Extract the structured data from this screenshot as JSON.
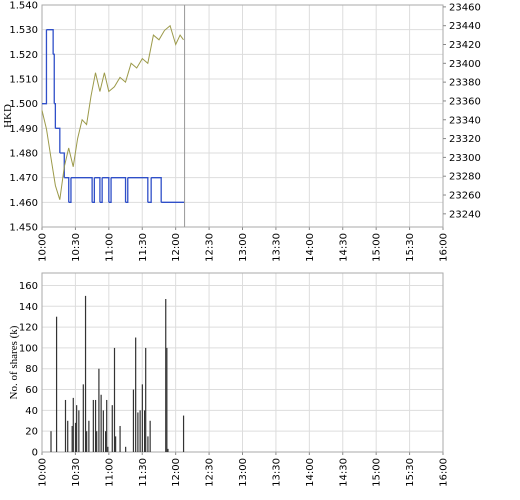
{
  "chart_data": [
    {
      "type": "line",
      "ylabel": "HKD",
      "xlim": [
        "10:00",
        "16:00"
      ],
      "xticks": [
        "10:00",
        "10:30",
        "11:00",
        "11:30",
        "12:00",
        "12:30",
        "13:00",
        "13:30",
        "14:00",
        "14:30",
        "15:00",
        "15:30",
        "16:00"
      ],
      "ylim": [
        1.45,
        1.54
      ],
      "yticks": [
        {
          "value": 1.54,
          "label": "1.540"
        },
        {
          "value": 1.53,
          "label": "1.530"
        },
        {
          "value": 1.52,
          "label": "1.520"
        },
        {
          "value": 1.51,
          "label": "1.510"
        },
        {
          "value": 1.5,
          "label": "1.500"
        },
        {
          "value": 1.49,
          "label": "1.490"
        },
        {
          "value": 1.48,
          "label": "1.480"
        },
        {
          "value": 1.47,
          "label": "1.470"
        },
        {
          "value": 1.46,
          "label": "1.460"
        },
        {
          "value": 1.45,
          "label": "1.450"
        }
      ],
      "y2lim": [
        23226,
        23462
      ],
      "y2ticks": [
        23460,
        23440,
        23420,
        23400,
        23380,
        23360,
        23340,
        23320,
        23300,
        23280,
        23260,
        23240
      ],
      "grid": true,
      "series": [
        {
          "color": "#2f4fc8",
          "axis": "y",
          "x": [
            "10:00",
            "10:04",
            "10:10",
            "10:11",
            "10:12",
            "10:16",
            "10:20",
            "10:24",
            "10:26",
            "10:45",
            "10:47",
            "10:52",
            "10:54",
            "11:00",
            "11:02",
            "11:15",
            "11:17",
            "11:35",
            "11:38",
            "11:47",
            "12:08"
          ],
          "values": [
            1.5,
            1.53,
            1.52,
            1.5,
            1.49,
            1.48,
            1.47,
            1.46,
            1.47,
            1.46,
            1.47,
            1.46,
            1.47,
            1.46,
            1.47,
            1.46,
            1.47,
            1.46,
            1.47,
            1.46,
            1.46
          ]
        },
        {
          "color": "#9c9a4a",
          "axis": "y2",
          "x": [
            "10:00",
            "10:04",
            "10:08",
            "10:12",
            "10:16",
            "10:20",
            "10:24",
            "10:28",
            "10:32",
            "10:36",
            "10:40",
            "10:44",
            "10:48",
            "10:52",
            "10:56",
            "11:00",
            "11:05",
            "11:10",
            "11:15",
            "11:20",
            "11:25",
            "11:30",
            "11:35",
            "11:40",
            "11:45",
            "11:50",
            "11:55",
            "12:00",
            "12:04",
            "12:07"
          ],
          "values": [
            23350,
            23330,
            23300,
            23270,
            23255,
            23290,
            23310,
            23290,
            23320,
            23340,
            23335,
            23365,
            23390,
            23370,
            23390,
            23370,
            23375,
            23385,
            23380,
            23400,
            23395,
            23405,
            23400,
            23430,
            23425,
            23435,
            23440,
            23420,
            23430,
            23425
          ]
        }
      ]
    },
    {
      "type": "bar",
      "ylabel": "No. of shares (k)",
      "xlim": [
        "10:00",
        "16:00"
      ],
      "xticks": [
        "10:00",
        "10:30",
        "11:00",
        "11:30",
        "12:00",
        "12:30",
        "13:00",
        "13:30",
        "14:00",
        "14:30",
        "15:00",
        "15:30",
        "16:00"
      ],
      "ylim": [
        0,
        172
      ],
      "yticks": [
        0,
        20,
        40,
        60,
        80,
        100,
        120,
        140,
        160
      ],
      "grid": true,
      "color": "#333333",
      "x": [
        "10:08",
        "10:13",
        "10:21",
        "10:23",
        "10:27",
        "10:28",
        "10:30",
        "10:31",
        "10:33",
        "10:37",
        "10:39",
        "10:40",
        "10:42",
        "10:46",
        "10:48",
        "10:49",
        "10:51",
        "10:53",
        "10:55",
        "10:57",
        "10:58",
        "10:59",
        "11:03",
        "11:05",
        "11:06",
        "11:10",
        "11:15",
        "11:22",
        "11:24",
        "11:26",
        "11:28",
        "11:30",
        "11:32",
        "11:33",
        "11:35",
        "11:37",
        "11:51",
        "11:52",
        "11:53",
        "12:07"
      ],
      "values": [
        20,
        130,
        50,
        30,
        25,
        52,
        28,
        45,
        40,
        65,
        150,
        20,
        30,
        50,
        50,
        20,
        80,
        55,
        40,
        20,
        50,
        5,
        45,
        100,
        15,
        25,
        5,
        60,
        110,
        38,
        40,
        65,
        40,
        100,
        15,
        30,
        147,
        100,
        3,
        35
      ]
    }
  ]
}
